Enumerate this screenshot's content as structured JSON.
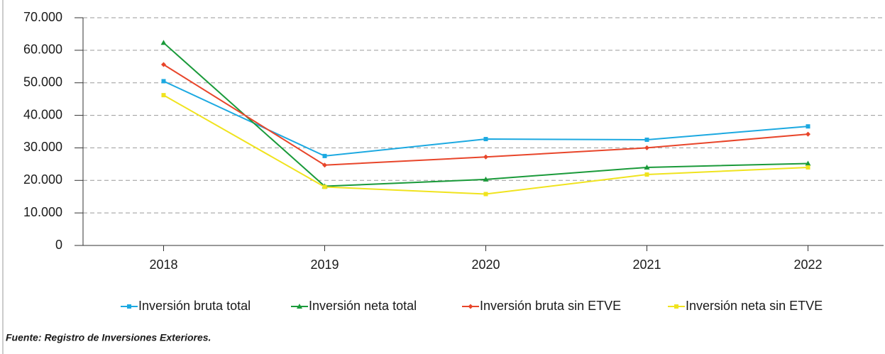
{
  "chart_data": {
    "type": "line",
    "categories": [
      "2018",
      "2019",
      "2020",
      "2021",
      "2022"
    ],
    "series": [
      {
        "name": "Inversión bruta total",
        "color": "#1ca9e1",
        "marker": "square",
        "values": [
          50500,
          27500,
          32700,
          32500,
          36600
        ]
      },
      {
        "name": "Inversión neta total",
        "color": "#1a9a3a",
        "marker": "triangle",
        "values": [
          62300,
          18200,
          20300,
          24000,
          25200
        ]
      },
      {
        "name": "Inversión bruta sin ETVE",
        "color": "#e8452a",
        "marker": "diamond",
        "values": [
          55600,
          24700,
          27200,
          30000,
          34200
        ]
      },
      {
        "name": "Inversión neta sin ETVE",
        "color": "#f0e31e",
        "marker": "square",
        "values": [
          46200,
          18000,
          15800,
          21800,
          24000
        ]
      }
    ],
    "ylim": [
      0,
      70000
    ],
    "yticks": [
      0,
      {
        "value": 10000,
        "label": "10.000"
      },
      {
        "value": 20000,
        "label": "20.000"
      },
      {
        "value": 30000,
        "label": "30.000"
      },
      {
        "value": 40000,
        "label": "40.000"
      },
      {
        "value": 50000,
        "label": "50.000"
      },
      {
        "value": 60000,
        "label": "60.000"
      },
      {
        "value": 70000,
        "label": "70.000"
      }
    ],
    "grid": true,
    "legend": "bottom",
    "source": "Fuente: Registro de Inversiones Exteriores."
  }
}
